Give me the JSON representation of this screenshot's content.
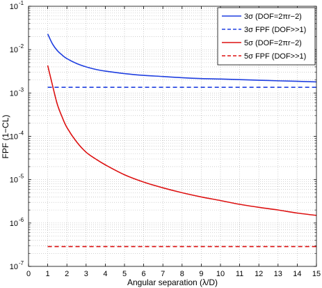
{
  "chart_data": {
    "type": "line",
    "xlabel": "Angular separation (λ/D)",
    "ylabel": "FPF (1−CL)",
    "xlim": [
      0,
      15
    ],
    "ylim": [
      1e-07,
      0.1
    ],
    "yscale": "log",
    "grid": true,
    "legend_position": "top-right",
    "x_ticks": [
      "0",
      "1",
      "2",
      "3",
      "4",
      "5",
      "6",
      "7",
      "8",
      "9",
      "10",
      "11",
      "12",
      "13",
      "14",
      "15"
    ],
    "y_ticks": [
      {
        "base": "10",
        "exp": "-7"
      },
      {
        "base": "10",
        "exp": "-6"
      },
      {
        "base": "10",
        "exp": "-5"
      },
      {
        "base": "10",
        "exp": "-4"
      },
      {
        "base": "10",
        "exp": "-3"
      },
      {
        "base": "10",
        "exp": "-2"
      },
      {
        "base": "10",
        "exp": "-1"
      }
    ],
    "series": [
      {
        "name": "3σ (DOF=2πr−2)",
        "color": "#1f3fe0",
        "style": "solid",
        "x": [
          1,
          1.25,
          1.5,
          1.75,
          2,
          2.5,
          3,
          3.5,
          4,
          5,
          6,
          7,
          8,
          9,
          10,
          11,
          12,
          13,
          14,
          15
        ],
        "y": [
          0.023,
          0.0135,
          0.0095,
          0.0075,
          0.0062,
          0.0048,
          0.004,
          0.0035,
          0.0032,
          0.0028,
          0.00255,
          0.0024,
          0.00225,
          0.00215,
          0.0021,
          0.00203,
          0.00197,
          0.00191,
          0.00186,
          0.0018
        ]
      },
      {
        "name": "3σ FPF (DOF>>1)",
        "color": "#1f3fe0",
        "style": "dashed",
        "x": [
          1,
          15
        ],
        "y": [
          0.00135,
          0.00135
        ]
      },
      {
        "name": "5σ (DOF=2πr−2)",
        "color": "#dd1111",
        "style": "solid",
        "x": [
          1,
          1.25,
          1.5,
          1.75,
          2,
          2.5,
          3,
          3.5,
          4,
          5,
          6,
          7,
          8,
          9,
          10,
          11,
          12,
          13,
          14,
          15
        ],
        "y": [
          0.0043,
          0.0015,
          0.00055,
          0.00028,
          0.00016,
          7.5e-05,
          4.3e-05,
          3e-05,
          2.2e-05,
          1.3e-05,
          8.8e-06,
          6.5e-06,
          5e-06,
          4e-06,
          3.3e-06,
          2.7e-06,
          2.3e-06,
          2e-06,
          1.7e-06,
          1.5e-06
        ]
      },
      {
        "name": "5σ FPF (DOF>>1)",
        "color": "#dd1111",
        "style": "dashed",
        "x": [
          1,
          15
        ],
        "y": [
          2.87e-07,
          2.87e-07
        ]
      }
    ]
  }
}
